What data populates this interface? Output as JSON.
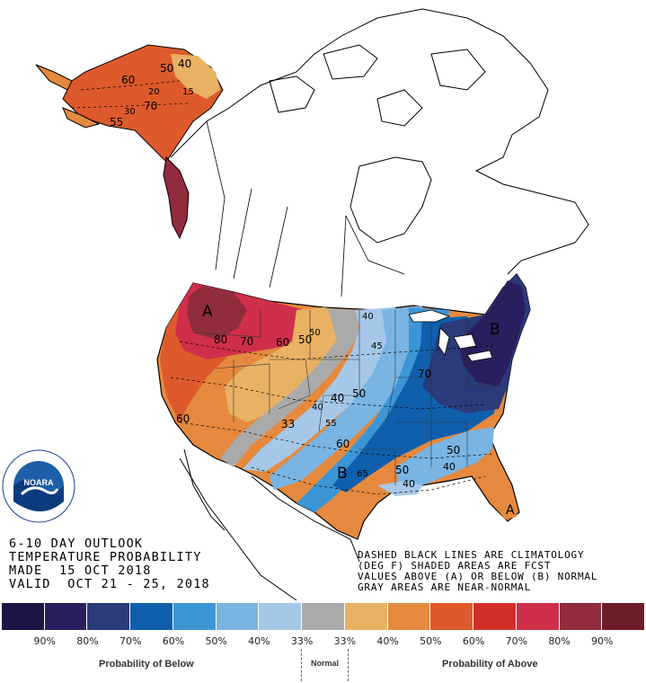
{
  "outlook": {
    "line1": "6-10 DAY OUTLOOK",
    "line2": "TEMPERATURE PROBABILITY",
    "line3": "MADE  15 OCT 2018",
    "line4": "VALID  OCT 21 - 25, 2018"
  },
  "notes": {
    "line1": "DASHED BLACK LINES ARE CLIMATOLOGY",
    "line2": "(DEG F) SHADED AREAS ARE FCST",
    "line3": "VALUES ABOVE (A) OR BELOW (B) NORMAL",
    "line4": "GRAY AREAS ARE NEAR-NORMAL"
  },
  "logo": {
    "text": "NOARA",
    "icon": "noaa-logo"
  },
  "map_labels": {
    "ak_40": "40",
    "ak_50": "50",
    "ak_60": "60",
    "ak_15": "15",
    "ak_20": "20",
    "ak_30": "30",
    "ak_70": "70",
    "ak_55": "55",
    "a_west": "A",
    "a_florida": "A",
    "b_east": "B",
    "b_south": "B",
    "w_80": "80",
    "w_70": "70",
    "w_60": "60",
    "w_50": "50",
    "w_60b": "60",
    "c_40": "40",
    "c_50": "50",
    "c_33": "33",
    "c_55": "55",
    "c_60": "60",
    "c_65": "65",
    "c_40b": "40",
    "e_40": "40",
    "e_45": "45",
    "e_70": "70",
    "e_50": "50",
    "e_40c": "40",
    "e_50b": "50",
    "e_40d": "40",
    "e_50c": "50"
  },
  "legend": {
    "colors": [
      "#1f1446",
      "#2a1f5e",
      "#2a3a7a",
      "#0f5fac",
      "#3c96d6",
      "#7ab4e2",
      "#a6c8e8",
      "#aaaaaa",
      "#e9b163",
      "#e5893e",
      "#de5a2c",
      "#d22f2a",
      "#cf2f4a",
      "#912c3c",
      "#6d1d28"
    ],
    "ticks": [
      "90%",
      "80%",
      "70%",
      "60%",
      "50%",
      "40%",
      "33%",
      "33%",
      "40%",
      "50%",
      "60%",
      "70%",
      "80%",
      "90%"
    ],
    "below_label": "Probability of Below",
    "normal_label": "Normal",
    "above_label": "Probability of Above"
  }
}
